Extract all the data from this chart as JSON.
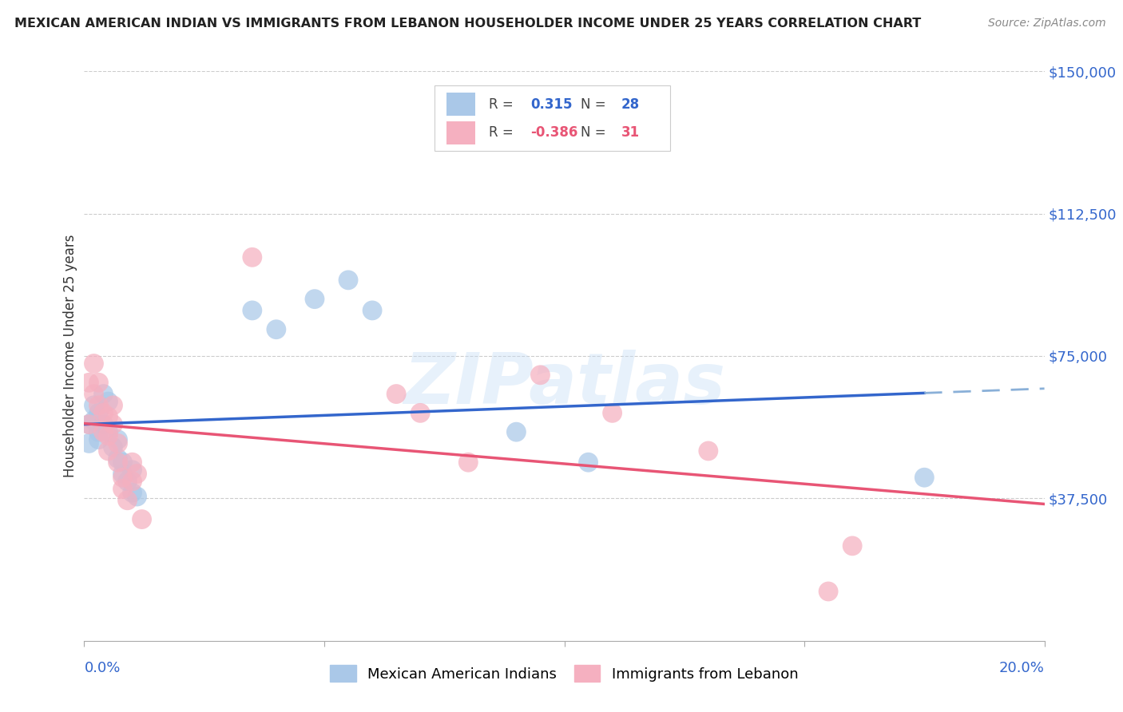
{
  "title": "MEXICAN AMERICAN INDIAN VS IMMIGRANTS FROM LEBANON HOUSEHOLDER INCOME UNDER 25 YEARS CORRELATION CHART",
  "source": "Source: ZipAtlas.com",
  "ylabel": "Householder Income Under 25 years",
  "ytick_labels": [
    "",
    "$37,500",
    "$75,000",
    "$112,500",
    "$150,000"
  ],
  "ytick_values": [
    0,
    37500,
    75000,
    112500,
    150000
  ],
  "xlim": [
    0.0,
    0.2
  ],
  "ylim": [
    0,
    150000
  ],
  "watermark": "ZIPatlas",
  "legend_blue_r": "0.315",
  "legend_blue_n": "28",
  "legend_pink_r": "-0.386",
  "legend_pink_n": "31",
  "legend_label_blue": "Mexican American Indians",
  "legend_label_pink": "Immigrants from Lebanon",
  "blue_color": "#aac8e8",
  "pink_color": "#f5b0c0",
  "line_blue_color": "#3366cc",
  "line_blue_dash_color": "#8ab0d8",
  "line_pink_color": "#e85575",
  "title_color": "#222222",
  "source_color": "#888888",
  "axis_label_color": "#3366cc",
  "blue_scatter_x": [
    0.001,
    0.001,
    0.002,
    0.002,
    0.003,
    0.003,
    0.003,
    0.004,
    0.004,
    0.005,
    0.005,
    0.006,
    0.007,
    0.007,
    0.008,
    0.008,
    0.009,
    0.01,
    0.01,
    0.011,
    0.035,
    0.04,
    0.048,
    0.055,
    0.06,
    0.09,
    0.105,
    0.175
  ],
  "blue_scatter_y": [
    57000,
    52000,
    58000,
    62000,
    60000,
    53000,
    55000,
    65000,
    57000,
    63000,
    55000,
    51000,
    48000,
    53000,
    47000,
    44000,
    42000,
    45000,
    39000,
    38000,
    87000,
    82000,
    90000,
    95000,
    87000,
    55000,
    47000,
    43000
  ],
  "pink_scatter_x": [
    0.001,
    0.001,
    0.002,
    0.002,
    0.003,
    0.003,
    0.004,
    0.004,
    0.005,
    0.005,
    0.005,
    0.006,
    0.006,
    0.007,
    0.007,
    0.008,
    0.008,
    0.009,
    0.01,
    0.01,
    0.011,
    0.012,
    0.035,
    0.065,
    0.07,
    0.08,
    0.095,
    0.11,
    0.13,
    0.155,
    0.16
  ],
  "pink_scatter_y": [
    68000,
    57000,
    73000,
    65000,
    68000,
    62000,
    60000,
    55000,
    59000,
    54000,
    50000,
    62000,
    57000,
    52000,
    47000,
    43000,
    40000,
    37000,
    47000,
    42000,
    44000,
    32000,
    101000,
    65000,
    60000,
    47000,
    70000,
    60000,
    50000,
    13000,
    25000
  ]
}
